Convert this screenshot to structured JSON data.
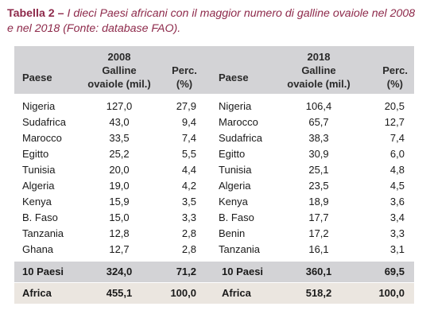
{
  "caption": {
    "label": "Tabella 2 – ",
    "text": "I dieci Paesi africani con il maggior numero di galline ovaiole nel 2008 e nel 2018 (Fonte: database FAO)."
  },
  "table": {
    "headers": {
      "country_2008": "Paese",
      "year_2008": "2008",
      "hens_2008": "Galline",
      "unit_2008": "ovaiole (mil.)",
      "perc_2008": "Perc.",
      "perc_unit_2008": "(%)",
      "country_2018": "Paese",
      "year_2018": "2018",
      "hens_2018": "Galline",
      "unit_2018": "ovaiole (mil.)",
      "perc_2018": "Perc.",
      "perc_unit_2018": "(%)"
    },
    "rows": [
      {
        "c2008": "Nigeria",
        "v2008": "127,0",
        "p2008": "27,9",
        "c2018": "Nigeria",
        "v2018": "106,4",
        "p2018": "20,5"
      },
      {
        "c2008": "Sudafrica",
        "v2008": "43,0",
        "p2008": "9,4",
        "c2018": "Marocco",
        "v2018": "65,7",
        "p2018": "12,7"
      },
      {
        "c2008": "Marocco",
        "v2008": "33,5",
        "p2008": "7,4",
        "c2018": "Sudafrica",
        "v2018": "38,3",
        "p2018": "7,4"
      },
      {
        "c2008": "Egitto",
        "v2008": "25,2",
        "p2008": "5,5",
        "c2018": "Egitto",
        "v2018": "30,9",
        "p2018": "6,0"
      },
      {
        "c2008": "Tunisia",
        "v2008": "20,0",
        "p2008": "4,4",
        "c2018": "Tunisia",
        "v2018": "25,1",
        "p2018": "4,8"
      },
      {
        "c2008": "Algeria",
        "v2008": "19,0",
        "p2008": "4,2",
        "c2018": "Algeria",
        "v2018": "23,5",
        "p2018": "4,5"
      },
      {
        "c2008": "Kenya",
        "v2008": "15,9",
        "p2008": "3,5",
        "c2018": "Kenya",
        "v2018": "18,9",
        "p2018": "3,6"
      },
      {
        "c2008": "B. Faso",
        "v2008": "15,0",
        "p2008": "3,3",
        "c2018": "B. Faso",
        "v2018": "17,7",
        "p2018": "3,4"
      },
      {
        "c2008": "Tanzania",
        "v2008": "12,8",
        "p2008": "2,8",
        "c2018": "Benin",
        "v2018": "17,2",
        "p2018": "3,3"
      },
      {
        "c2008": "Ghana",
        "v2008": "12,7",
        "p2008": "2,8",
        "c2018": "Tanzania",
        "v2018": "16,1",
        "p2018": "3,1"
      }
    ],
    "totals": [
      {
        "c2008": "10 Paesi",
        "v2008": "324,0",
        "p2008": "71,2",
        "c2018": "10 Paesi",
        "v2018": "360,1",
        "p2018": "69,5"
      },
      {
        "c2008": "Africa",
        "v2008": "455,1",
        "p2008": "100,0",
        "c2018": "Africa",
        "v2018": "518,2",
        "p2018": "100,0"
      }
    ]
  },
  "colors": {
    "caption": "#8e2a4b",
    "header_bg": "#d3d3d6",
    "total_bg": "#d3d3d6",
    "africa_bg": "#ebe6e0"
  }
}
